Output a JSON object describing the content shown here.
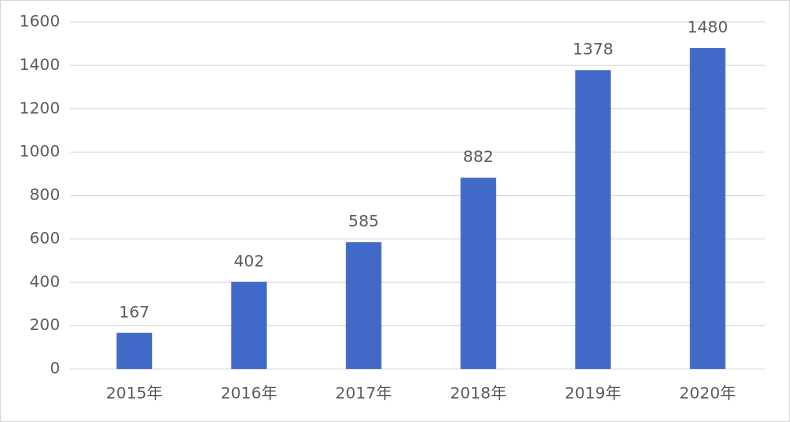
{
  "chart_data": {
    "type": "bar",
    "categories": [
      "2015年",
      "2016年",
      "2017年",
      "2018年",
      "2019年",
      "2020年"
    ],
    "values": [
      167,
      402,
      585,
      882,
      1378,
      1480
    ],
    "color": "#4169c8",
    "ylim": [
      0,
      1600
    ],
    "yticks": [
      0,
      200,
      400,
      600,
      800,
      1000,
      1200,
      1400,
      1600
    ],
    "grid": true,
    "data_labels": true
  }
}
